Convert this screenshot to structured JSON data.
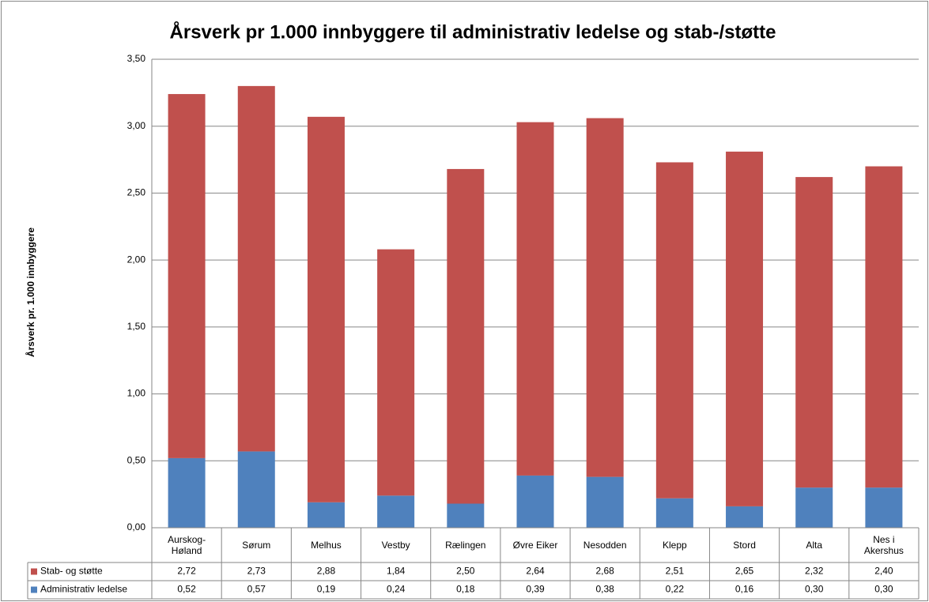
{
  "chart_data": {
    "type": "stacked_bar",
    "title": "Årsverk pr 1.000 innbyggere til administrativ ledelse og stab-/støtte",
    "y_label": "Årsverk pr. 1.000 innbyggere",
    "categories": [
      "Aurskog-Høland",
      "Sørum",
      "Melhus",
      "Vestby",
      "Rælingen",
      "Øvre Eiker",
      "Nesodden",
      "Klepp",
      "Stord",
      "Alta",
      "Nes i Akershus"
    ],
    "series": [
      {
        "name": "Stab- og støtte",
        "color": "#c0504d",
        "values": [
          2.72,
          2.73,
          2.88,
          1.84,
          2.5,
          2.64,
          2.68,
          2.51,
          2.65,
          2.32,
          2.4
        ],
        "value_labels": [
          "2,72",
          "2,73",
          "2,88",
          "1,84",
          "2,50",
          "2,64",
          "2,68",
          "2,51",
          "2,65",
          "2,32",
          "2,40"
        ]
      },
      {
        "name": "Administrativ ledelse",
        "color": "#4f81bd",
        "values": [
          0.52,
          0.57,
          0.19,
          0.24,
          0.18,
          0.39,
          0.38,
          0.22,
          0.16,
          0.3,
          0.3
        ],
        "value_labels": [
          "0,52",
          "0,57",
          "0,19",
          "0,24",
          "0,18",
          "0,39",
          "0,38",
          "0,22",
          "0,16",
          "0,30",
          "0,30"
        ]
      }
    ],
    "ylim": [
      0,
      3.5
    ],
    "yticks": [
      {
        "value": 0,
        "label": "0,00"
      },
      {
        "value": 0.5,
        "label": "0,50"
      },
      {
        "value": 1,
        "label": "1,00"
      },
      {
        "value": 1.5,
        "label": "1,50"
      },
      {
        "value": 2,
        "label": "2,00"
      },
      {
        "value": 2.5,
        "label": "2,50"
      },
      {
        "value": 3,
        "label": "3,00"
      },
      {
        "value": 3.5,
        "label": "3,50"
      }
    ],
    "grid": true
  }
}
